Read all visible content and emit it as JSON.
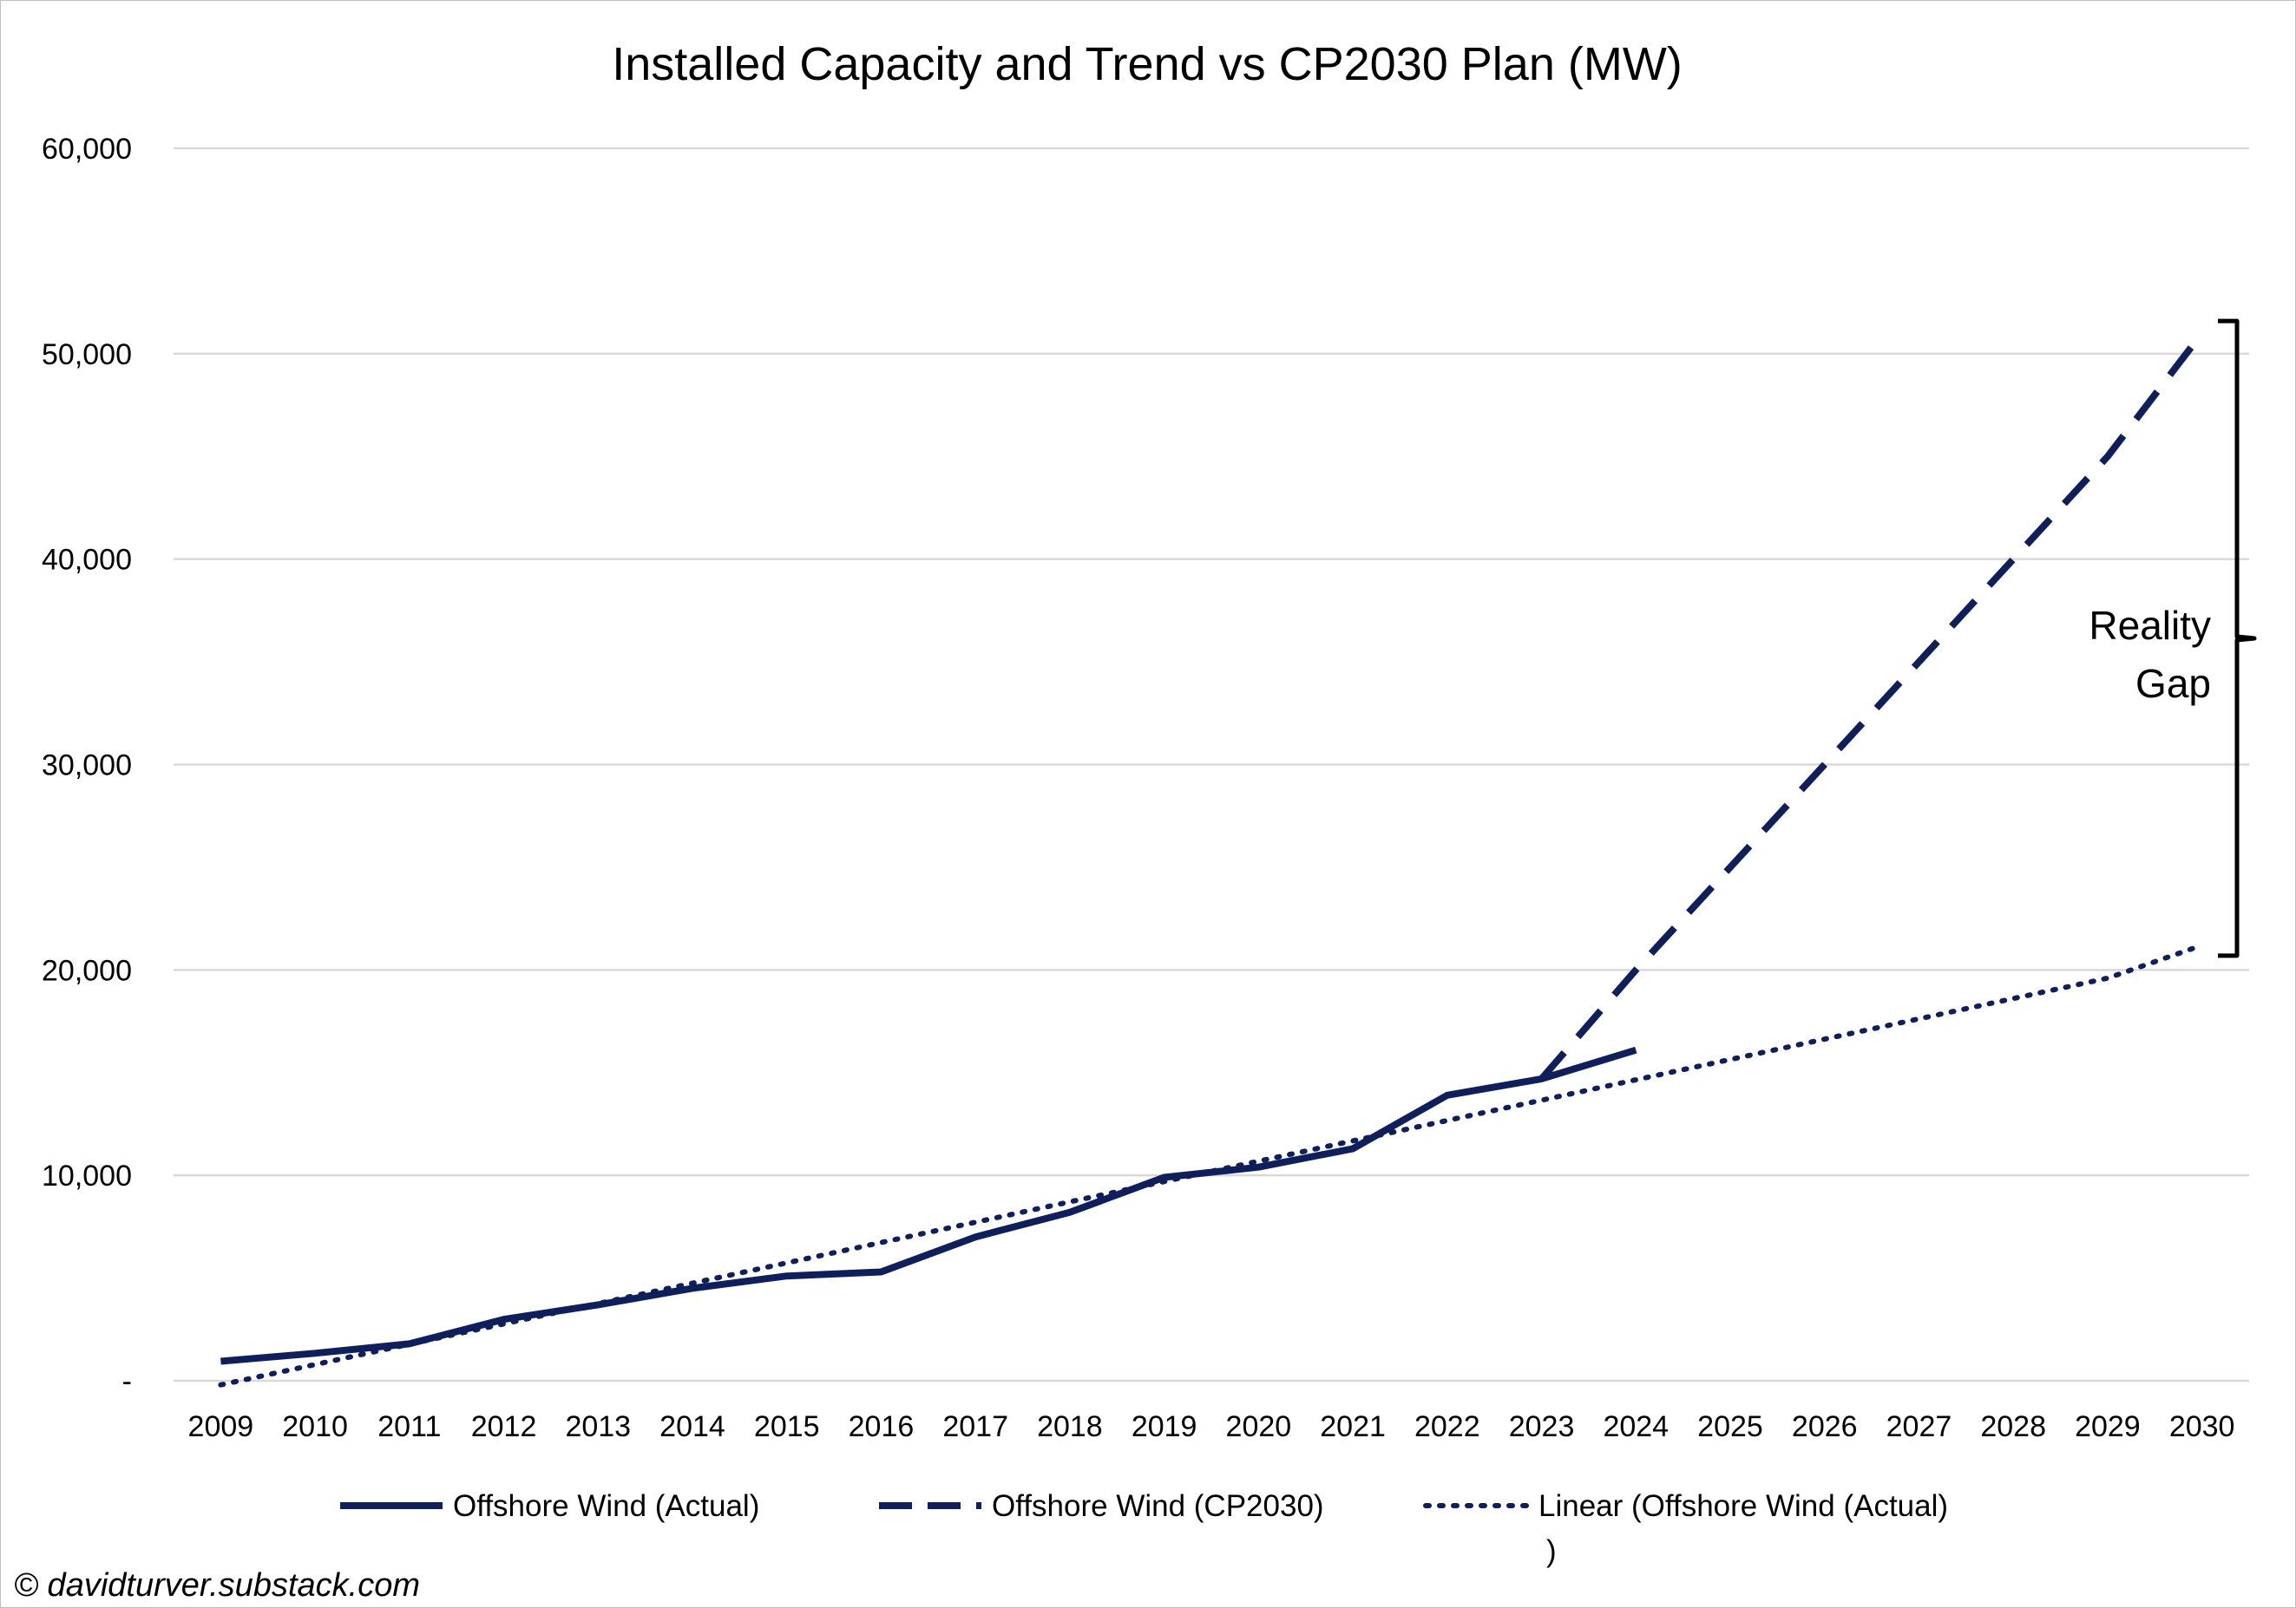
{
  "chart_data": {
    "type": "line",
    "title": "Installed Capacity and Trend vs CP2030 Plan (MW)",
    "xlabel": "",
    "ylabel": "",
    "categories": [
      "2009",
      "2010",
      "2011",
      "2012",
      "2013",
      "2014",
      "2015",
      "2016",
      "2017",
      "2018",
      "2019",
      "2020",
      "2021",
      "2022",
      "2023",
      "2024",
      "2025",
      "2026",
      "2027",
      "2028",
      "2029",
      "2030"
    ],
    "ylim": [
      0,
      60000
    ],
    "yticks": [
      0,
      10000,
      20000,
      30000,
      40000,
      50000,
      60000
    ],
    "ytick_labels": [
      "-",
      "10,000",
      "20,000",
      "30,000",
      "40,000",
      "50,000",
      "60,000"
    ],
    "grid": true,
    "legend_position": "bottom",
    "series": [
      {
        "name": "Offshore Wind (Actual)",
        "style": "solid",
        "color": "#0f1f5c",
        "values": [
          950,
          1340,
          1800,
          2990,
          3700,
          4500,
          5100,
          5300,
          7000,
          8200,
          9900,
          10400,
          11300,
          13900,
          14700,
          16100,
          null,
          null,
          null,
          null,
          null,
          null
        ]
      },
      {
        "name": "Offshore Wind (CP2030)",
        "style": "dashed",
        "color": "#0f1f5c",
        "values": [
          null,
          null,
          null,
          null,
          null,
          null,
          null,
          null,
          null,
          null,
          null,
          null,
          null,
          null,
          14700,
          20000,
          25000,
          30000,
          35000,
          40000,
          45000,
          51000
        ]
      },
      {
        "name": "Linear (Offshore Wind (Actual)\n)",
        "style": "dotted",
        "color": "#0f1f5c",
        "values": [
          -200,
          790,
          1780,
          2770,
          3760,
          4750,
          5740,
          6730,
          7720,
          8710,
          9700,
          10690,
          11680,
          12670,
          13660,
          14650,
          15640,
          16630,
          17620,
          18610,
          19600,
          21200
        ]
      }
    ],
    "annotations": [
      {
        "text_line1": "Reality",
        "text_line2": "Gap",
        "bracket_from": 21200,
        "bracket_to": 51000
      }
    ]
  },
  "legend": {
    "actual": "Offshore Wind (Actual)",
    "cp2030": "Offshore Wind (CP2030)",
    "linear_line1": "Linear (Offshore Wind (Actual)",
    "linear_line2": ")"
  },
  "annotation": {
    "line1": "Reality",
    "line2": "Gap"
  },
  "credit": "© davidturver.substack.com"
}
